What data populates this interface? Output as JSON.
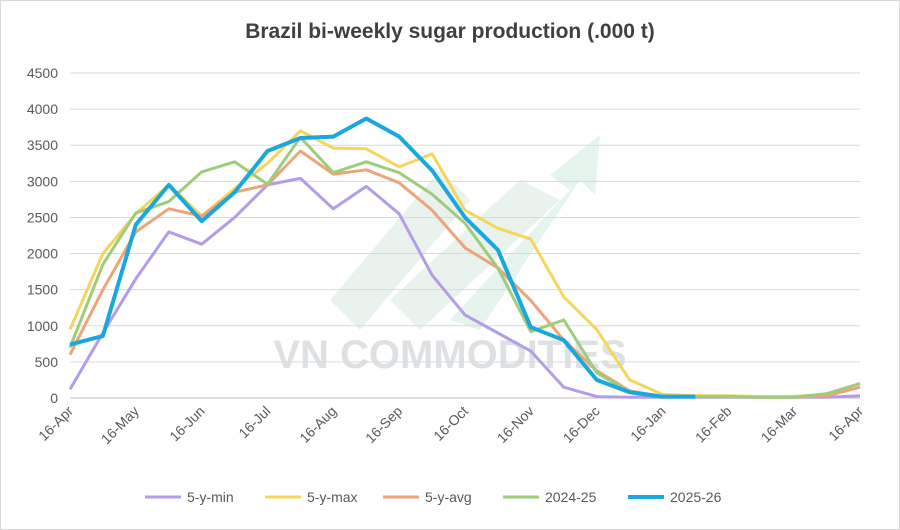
{
  "chart_data": {
    "type": "line",
    "title": "Brazil bi-weekly sugar production (.000 t)",
    "watermark": "VN COMMODITIES",
    "categories": [
      "16-Apr",
      null,
      "16-May",
      null,
      "16-Jun",
      null,
      "16-Jul",
      null,
      "16-Aug",
      null,
      "16-Sep",
      null,
      "16-Oct",
      null,
      "16-Nov",
      null,
      "16-Dec",
      null,
      "16-Jan",
      null,
      "16-Feb",
      null,
      "16-Mar",
      null,
      "16-Apr"
    ],
    "series": [
      {
        "name": "5-y-min",
        "color": "#b39ce8",
        "values": [
          120,
          900,
          1650,
          2300,
          2130,
          2500,
          2950,
          3040,
          2620,
          2930,
          2550,
          1700,
          1150,
          900,
          650,
          150,
          20,
          10,
          10,
          10,
          10,
          10,
          10,
          10,
          30
        ]
      },
      {
        "name": "5-y-max",
        "color": "#f5d65a",
        "values": [
          950,
          2000,
          2550,
          2950,
          2520,
          2900,
          3250,
          3700,
          3460,
          3450,
          3200,
          3380,
          2600,
          2350,
          2200,
          1400,
          950,
          250,
          50,
          30,
          30,
          20,
          20,
          60,
          200
        ]
      },
      {
        "name": "5-y-avg",
        "color": "#eea47a",
        "values": [
          600,
          1500,
          2300,
          2620,
          2520,
          2850,
          2950,
          3420,
          3100,
          3160,
          2980,
          2600,
          2080,
          1800,
          1350,
          800,
          380,
          100,
          20,
          20,
          20,
          10,
          10,
          30,
          150
        ]
      },
      {
        "name": "2024-25",
        "color": "#9dcc7a",
        "values": [
          700,
          1850,
          2560,
          2720,
          3130,
          3270,
          2960,
          3610,
          3120,
          3270,
          3120,
          2820,
          2420,
          1800,
          920,
          1080,
          350,
          80,
          20,
          20,
          20,
          10,
          10,
          60,
          200
        ]
      },
      {
        "name": "2025-26",
        "color": "#1aa7dd",
        "values": [
          740,
          860,
          2400,
          2950,
          2450,
          2850,
          3420,
          3600,
          3620,
          3870,
          3620,
          3150,
          2500,
          2050,
          980,
          800,
          250,
          80,
          20,
          20,
          null,
          null,
          null,
          null,
          null
        ]
      }
    ],
    "ylim": [
      0,
      4500
    ],
    "yticks": [
      0,
      500,
      1000,
      1500,
      2000,
      2500,
      3000,
      3500,
      4000,
      4500
    ],
    "grid": true
  }
}
